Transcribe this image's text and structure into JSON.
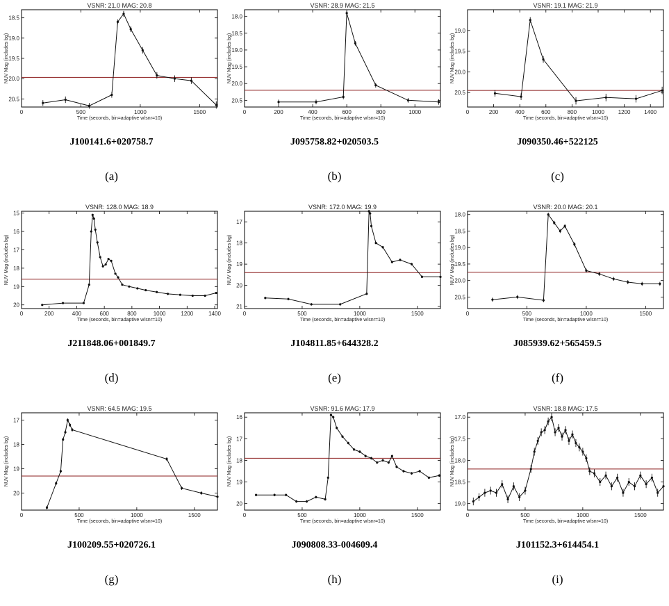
{
  "chart_data": [
    {
      "type": "line",
      "label": "(a)",
      "object": "J100141.6+020758.7",
      "title": "VSNR: 21.0   MAG: 20.8",
      "xlabel": "Time (seconds, bin=adaptive w/snr=10)",
      "ylabel": "NUV Mag (includes bg)",
      "xlim": [
        0,
        1650
      ],
      "ylim": [
        18.3,
        20.7
      ],
      "xticks": [
        0,
        500,
        1000,
        1500
      ],
      "yticks": [
        18.5,
        19.0,
        19.5,
        20.0,
        20.5
      ],
      "ytick_labels": [
        "18.5",
        "19.0",
        "19.5",
        "20.0",
        "20.5"
      ],
      "reference_mag": 19.97,
      "x": [
        180,
        370,
        570,
        760,
        810,
        860,
        920,
        1020,
        1140,
        1290,
        1430,
        1640
      ],
      "y": [
        20.6,
        20.52,
        20.67,
        20.4,
        18.6,
        18.4,
        18.78,
        19.3,
        19.92,
        20.0,
        20.05,
        20.65
      ],
      "yerr": [
        0.07,
        0.08,
        0.07,
        0.07,
        0.06,
        0.07,
        0.07,
        0.08,
        0.08,
        0.08,
        0.08,
        0.09
      ]
    },
    {
      "type": "line",
      "label": "(b)",
      "object": "J095758.82+020503.5",
      "title": "VSNR: 28.9   MAG: 21.5",
      "xlabel": "Time (seconds, bin=adaptive w/snr=10)",
      "ylabel": "NUV Mag (includes bg)",
      "xlim": [
        0,
        1150
      ],
      "ylim": [
        17.8,
        20.7
      ],
      "xticks": [
        0,
        200,
        400,
        600,
        800,
        1000
      ],
      "yticks": [
        18.0,
        18.5,
        19.0,
        19.5,
        20.0,
        20.5
      ],
      "ytick_labels": [
        "18.0",
        "18.5",
        "19.0",
        "19.5",
        "20.0",
        "20.5"
      ],
      "reference_mag": 20.2,
      "x": [
        200,
        420,
        580,
        600,
        650,
        770,
        960,
        1140
      ],
      "y": [
        20.55,
        20.55,
        20.4,
        17.9,
        18.8,
        20.05,
        20.5,
        20.55
      ],
      "yerr": [
        0.07,
        0.07,
        0.07,
        0.06,
        0.07,
        0.07,
        0.07,
        0.08
      ]
    },
    {
      "type": "line",
      "label": "(c)",
      "object": "J090350.46+522125",
      "title": "VSNR: 19.1   MAG: 21.9",
      "xlabel": "Time (seconds, bin=adaptive w/snr=10)",
      "ylabel": "NUV Mag (includes bg)",
      "xlim": [
        0,
        1500
      ],
      "ylim": [
        18.5,
        20.85
      ],
      "xticks": [
        0,
        200,
        400,
        600,
        800,
        1000,
        1200,
        1400
      ],
      "yticks": [
        19.0,
        19.5,
        20.0,
        20.5
      ],
      "ytick_labels": [
        "19.0",
        "19.5",
        "20.0",
        "20.5"
      ],
      "reference_mag": 20.45,
      "x": [
        210,
        410,
        480,
        580,
        830,
        1060,
        1290,
        1490
      ],
      "y": [
        20.52,
        20.6,
        18.75,
        19.7,
        20.7,
        20.62,
        20.65,
        20.45
      ],
      "yerr": [
        0.08,
        0.08,
        0.07,
        0.08,
        0.09,
        0.09,
        0.09,
        0.09
      ]
    },
    {
      "type": "line",
      "label": "(d)",
      "object": "J211848.06+001849.7",
      "title": "VSNR: 128.0   MAG: 18.9",
      "xlabel": "Time (seconds, bin=adaptive w/snr=10)",
      "ylabel": "NUV Mag (includes bg)",
      "xlim": [
        0,
        1420
      ],
      "ylim": [
        14.9,
        20.2
      ],
      "xticks": [
        0,
        200,
        400,
        600,
        800,
        1000,
        1200,
        1400
      ],
      "yticks": [
        15,
        16,
        17,
        18,
        19,
        20
      ],
      "ytick_labels": [
        "15",
        "16",
        "17",
        "18",
        "19",
        "20"
      ],
      "reference_mag": 18.6,
      "x": [
        150,
        300,
        450,
        490,
        505,
        515,
        525,
        535,
        550,
        570,
        590,
        610,
        630,
        650,
        680,
        700,
        730,
        780,
        840,
        900,
        980,
        1060,
        1150,
        1240,
        1330,
        1410
      ],
      "y": [
        20.0,
        19.9,
        19.9,
        18.9,
        16.0,
        15.1,
        15.3,
        15.9,
        16.6,
        17.4,
        17.9,
        17.8,
        17.5,
        17.6,
        18.3,
        18.5,
        18.9,
        19.0,
        19.1,
        19.2,
        19.3,
        19.4,
        19.45,
        19.5,
        19.5,
        19.35
      ],
      "yerr": [
        0.05,
        0.05,
        0.05,
        0.06,
        0.05,
        0.05,
        0.05,
        0.05,
        0.05,
        0.05,
        0.05,
        0.05,
        0.05,
        0.05,
        0.05,
        0.05,
        0.05,
        0.05,
        0.05,
        0.05,
        0.05,
        0.05,
        0.05,
        0.05,
        0.05,
        0.05
      ]
    },
    {
      "type": "line",
      "label": "(e)",
      "object": "J104811.85+644328.2",
      "title": "VSNR: 172.0   MAG: 19.9",
      "xlabel": "Time (seconds, bin=adaptive w/snr=10)",
      "ylabel": "NUV Mag (includes bg)",
      "xlim": [
        0,
        1700
      ],
      "ylim": [
        16.5,
        21.1
      ],
      "xticks": [
        0,
        500,
        1000,
        1500
      ],
      "yticks": [
        17,
        18,
        19,
        20,
        21
      ],
      "ytick_labels": [
        "17",
        "18",
        "19",
        "20",
        "21"
      ],
      "reference_mag": 19.4,
      "x": [
        180,
        380,
        580,
        830,
        1060,
        1080,
        1090,
        1100,
        1140,
        1200,
        1280,
        1350,
        1450,
        1540,
        1700
      ],
      "y": [
        20.6,
        20.65,
        20.9,
        20.9,
        20.4,
        16.5,
        16.6,
        17.2,
        18.0,
        18.2,
        18.9,
        18.8,
        19.0,
        19.6,
        19.6
      ],
      "yerr": [
        0.06,
        0.06,
        0.06,
        0.06,
        0.06,
        0.06,
        0.06,
        0.06,
        0.06,
        0.06,
        0.06,
        0.06,
        0.06,
        0.06,
        0.06
      ]
    },
    {
      "type": "line",
      "label": "(f)",
      "object": "J085939.62+565459.5",
      "title": "VSNR: 20.0   MAG: 20.1",
      "xlabel": "Time (seconds, bin=adaptive w/snr=10)",
      "ylabel": "NUV Mag (includes bg)",
      "xlim": [
        0,
        1650
      ],
      "ylim": [
        17.9,
        20.85
      ],
      "xticks": [
        0,
        500,
        1000,
        1500
      ],
      "yticks": [
        18.0,
        18.5,
        19.0,
        19.5,
        20.0,
        20.5
      ],
      "ytick_labels": [
        "18.0",
        "18.5",
        "19.0",
        "19.5",
        "20.0",
        "20.5"
      ],
      "reference_mag": 19.75,
      "x": [
        210,
        420,
        640,
        680,
        730,
        780,
        820,
        900,
        1000,
        1110,
        1230,
        1350,
        1470,
        1620
      ],
      "y": [
        20.58,
        20.5,
        20.6,
        18.0,
        18.25,
        18.5,
        18.35,
        18.9,
        19.7,
        19.8,
        19.95,
        20.05,
        20.1,
        20.1
      ],
      "yerr": [
        0.06,
        0.06,
        0.06,
        0.06,
        0.06,
        0.06,
        0.06,
        0.06,
        0.06,
        0.06,
        0.06,
        0.06,
        0.06,
        0.06
      ]
    },
    {
      "type": "line",
      "label": "(g)",
      "object": "J100209.55+020726.1",
      "title": "VSNR: 64.5   MAG: 19.5",
      "xlabel": "Time (seconds, bin=adaptive w/snr=10)",
      "ylabel": "NUV Mag (includes bg)",
      "xlim": [
        0,
        1700
      ],
      "ylim": [
        16.7,
        20.7
      ],
      "xticks": [
        0,
        500,
        1000,
        1500
      ],
      "yticks": [
        17,
        18,
        19,
        20
      ],
      "ytick_labels": [
        "17",
        "18",
        "19",
        "20"
      ],
      "reference_mag": 19.3,
      "x": [
        220,
        300,
        340,
        360,
        380,
        400,
        420,
        440,
        1260,
        1390,
        1560,
        1700
      ],
      "y": [
        20.6,
        19.6,
        19.1,
        17.8,
        17.5,
        17.0,
        17.2,
        17.4,
        18.6,
        19.8,
        20.0,
        20.15
      ],
      "yerr": [
        0.07,
        0.07,
        0.07,
        0.07,
        0.07,
        0.07,
        0.07,
        0.07,
        0.07,
        0.07,
        0.07,
        0.07
      ]
    },
    {
      "type": "line",
      "label": "(h)",
      "object": "J090808.33-004609.4",
      "title": "VSNR: 91.6   MAG: 17.9",
      "xlabel": "Time (seconds, bin=adaptive w/snr=10)",
      "ylabel": "NUV Mag (includes bg)",
      "xlim": [
        0,
        1700
      ],
      "ylim": [
        15.8,
        20.3
      ],
      "xticks": [
        0,
        500,
        1000,
        1500
      ],
      "yticks": [
        16,
        17,
        18,
        19,
        20
      ],
      "ytick_labels": [
        "16",
        "17",
        "18",
        "19",
        "20"
      ],
      "reference_mag": 17.9,
      "x": [
        100,
        260,
        360,
        450,
        540,
        620,
        700,
        725,
        750,
        770,
        800,
        850,
        900,
        950,
        1000,
        1050,
        1100,
        1150,
        1200,
        1250,
        1280,
        1320,
        1380,
        1450,
        1520,
        1600,
        1690
      ],
      "y": [
        19.6,
        19.6,
        19.6,
        19.9,
        19.9,
        19.7,
        19.8,
        18.8,
        15.9,
        16.0,
        16.5,
        16.9,
        17.2,
        17.5,
        17.6,
        17.8,
        17.9,
        18.1,
        18.0,
        18.1,
        17.8,
        18.3,
        18.5,
        18.6,
        18.5,
        18.8,
        18.7
      ],
      "yerr": [
        0.06,
        0.06,
        0.06,
        0.06,
        0.06,
        0.06,
        0.06,
        0.06,
        0.06,
        0.06,
        0.06,
        0.06,
        0.06,
        0.06,
        0.06,
        0.06,
        0.06,
        0.06,
        0.06,
        0.06,
        0.06,
        0.06,
        0.06,
        0.06,
        0.06,
        0.06,
        0.06
      ]
    },
    {
      "type": "line",
      "label": "(i)",
      "object": "J101152.3+614454.1",
      "title": "VSNR: 18.8   MAG: 17.5",
      "xlabel": "Time (seconds, bin=adaptive w/snr=10)",
      "ylabel": "NUV Mag (includes bg)",
      "xlim": [
        0,
        1700
      ],
      "ylim": [
        16.9,
        19.15
      ],
      "xticks": [
        0,
        500,
        1000,
        1500
      ],
      "yticks": [
        17.0,
        17.5,
        18.0,
        18.5,
        19.0
      ],
      "ytick_labels": [
        "17.0",
        "17.5",
        "18.0",
        "18.5",
        "19.0"
      ],
      "reference_mag": 18.2,
      "x": [
        50,
        100,
        150,
        200,
        250,
        300,
        350,
        400,
        450,
        500,
        550,
        580,
        610,
        640,
        670,
        700,
        730,
        760,
        790,
        820,
        850,
        880,
        910,
        940,
        970,
        1000,
        1030,
        1060,
        1100,
        1150,
        1200,
        1250,
        1300,
        1350,
        1400,
        1450,
        1500,
        1550,
        1600,
        1650,
        1700
      ],
      "y": [
        18.95,
        18.85,
        18.75,
        18.7,
        18.75,
        18.55,
        18.9,
        18.6,
        18.85,
        18.7,
        18.2,
        17.8,
        17.55,
        17.35,
        17.3,
        17.1,
        17.0,
        17.35,
        17.25,
        17.45,
        17.3,
        17.55,
        17.4,
        17.6,
        17.7,
        17.8,
        17.95,
        18.25,
        18.3,
        18.5,
        18.35,
        18.6,
        18.4,
        18.75,
        18.5,
        18.6,
        18.35,
        18.55,
        18.4,
        18.75,
        18.6
      ],
      "yerr": [
        0.09,
        0.09,
        0.09,
        0.09,
        0.09,
        0.09,
        0.09,
        0.09,
        0.09,
        0.09,
        0.09,
        0.09,
        0.09,
        0.09,
        0.09,
        0.09,
        0.09,
        0.09,
        0.09,
        0.09,
        0.09,
        0.09,
        0.09,
        0.09,
        0.09,
        0.09,
        0.09,
        0.09,
        0.09,
        0.09,
        0.09,
        0.09,
        0.09,
        0.09,
        0.09,
        0.09,
        0.09,
        0.09,
        0.09,
        0.09,
        0.09
      ]
    }
  ],
  "colors": {
    "curve": "#111111",
    "reference_line": "#8b1c1c",
    "axis": "#000000"
  }
}
